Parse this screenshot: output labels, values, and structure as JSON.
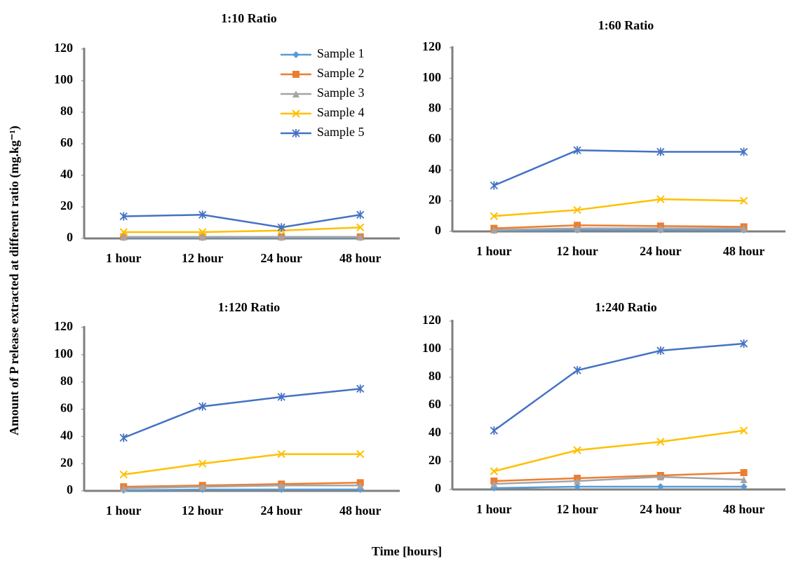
{
  "y_label": "Amount of P release extracted at different ratio (mg.kg⁻¹)",
  "x_label": "Time [hours]",
  "chart_data": [
    {
      "type": "line",
      "title": "1:10 Ratio",
      "legend": true,
      "categories": [
        "1 hour",
        "12 hour",
        "24 hour",
        "48 hour"
      ],
      "ylim": [
        0,
        120
      ],
      "yticks": [
        0,
        20,
        40,
        60,
        80,
        100,
        120
      ],
      "series": [
        {
          "name": "Sample 1",
          "color": "#5b9bd5",
          "marker": "diamond",
          "values": [
            0.5,
            0.5,
            0.5,
            0.5
          ]
        },
        {
          "name": "Sample 2",
          "color": "#ed7d31",
          "marker": "square",
          "values": [
            1,
            1,
            1,
            1
          ]
        },
        {
          "name": "Sample 3",
          "color": "#a5a5a5",
          "marker": "triangle",
          "values": [
            1,
            1,
            1,
            1
          ]
        },
        {
          "name": "Sample 4",
          "color": "#ffc000",
          "marker": "x",
          "values": [
            4,
            4,
            5,
            7
          ]
        },
        {
          "name": "Sample 5",
          "color": "#4472c4",
          "marker": "star",
          "values": [
            14,
            15,
            7,
            15
          ]
        }
      ]
    },
    {
      "type": "line",
      "title": "1:60 Ratio",
      "legend": false,
      "categories": [
        "1 hour",
        "12 hour",
        "24 hour",
        "48 hour"
      ],
      "ylim": [
        0,
        120
      ],
      "yticks": [
        0,
        20,
        40,
        60,
        80,
        100,
        120
      ],
      "series": [
        {
          "name": "Sample 1",
          "color": "#5b9bd5",
          "marker": "diamond",
          "values": [
            0.5,
            1,
            1,
            1
          ]
        },
        {
          "name": "Sample 2",
          "color": "#ed7d31",
          "marker": "square",
          "values": [
            2,
            4,
            3.5,
            3
          ]
        },
        {
          "name": "Sample 3",
          "color": "#a5a5a5",
          "marker": "triangle",
          "values": [
            1,
            2,
            2,
            2
          ]
        },
        {
          "name": "Sample 4",
          "color": "#ffc000",
          "marker": "x",
          "values": [
            10,
            14,
            21,
            20
          ]
        },
        {
          "name": "Sample 5",
          "color": "#4472c4",
          "marker": "star",
          "values": [
            30,
            53,
            52,
            52
          ]
        }
      ]
    },
    {
      "type": "line",
      "title": "1:120 Ratio",
      "legend": false,
      "categories": [
        "1 hour",
        "12 hour",
        "24 hour",
        "48 hour"
      ],
      "ylim": [
        0,
        120
      ],
      "yticks": [
        0,
        20,
        40,
        60,
        80,
        100,
        120
      ],
      "series": [
        {
          "name": "Sample 1",
          "color": "#5b9bd5",
          "marker": "diamond",
          "values": [
            0.5,
            1,
            1,
            1
          ]
        },
        {
          "name": "Sample 2",
          "color": "#ed7d31",
          "marker": "square",
          "values": [
            3,
            4,
            5,
            6
          ]
        },
        {
          "name": "Sample 3",
          "color": "#a5a5a5",
          "marker": "triangle",
          "values": [
            2,
            3,
            4,
            4
          ]
        },
        {
          "name": "Sample 4",
          "color": "#ffc000",
          "marker": "x",
          "values": [
            12,
            20,
            27,
            27
          ]
        },
        {
          "name": "Sample 5",
          "color": "#4472c4",
          "marker": "star",
          "values": [
            39,
            62,
            69,
            75
          ]
        }
      ]
    },
    {
      "type": "line",
      "title": "1:240 Ratio",
      "legend": false,
      "categories": [
        "1 hour",
        "12 hour",
        "24 hour",
        "48 hour"
      ],
      "ylim": [
        0,
        120
      ],
      "yticks": [
        0,
        20,
        40,
        60,
        80,
        100,
        120
      ],
      "series": [
        {
          "name": "Sample 1",
          "color": "#5b9bd5",
          "marker": "diamond",
          "values": [
            1,
            2,
            2,
            2
          ]
        },
        {
          "name": "Sample 2",
          "color": "#ed7d31",
          "marker": "square",
          "values": [
            6,
            8,
            10,
            12
          ]
        },
        {
          "name": "Sample 3",
          "color": "#a5a5a5",
          "marker": "triangle",
          "values": [
            4,
            6,
            9,
            7
          ]
        },
        {
          "name": "Sample 4",
          "color": "#ffc000",
          "marker": "x",
          "values": [
            13,
            28,
            34,
            42
          ]
        },
        {
          "name": "Sample 5",
          "color": "#4472c4",
          "marker": "star",
          "values": [
            42,
            85,
            99,
            104
          ]
        }
      ]
    }
  ]
}
